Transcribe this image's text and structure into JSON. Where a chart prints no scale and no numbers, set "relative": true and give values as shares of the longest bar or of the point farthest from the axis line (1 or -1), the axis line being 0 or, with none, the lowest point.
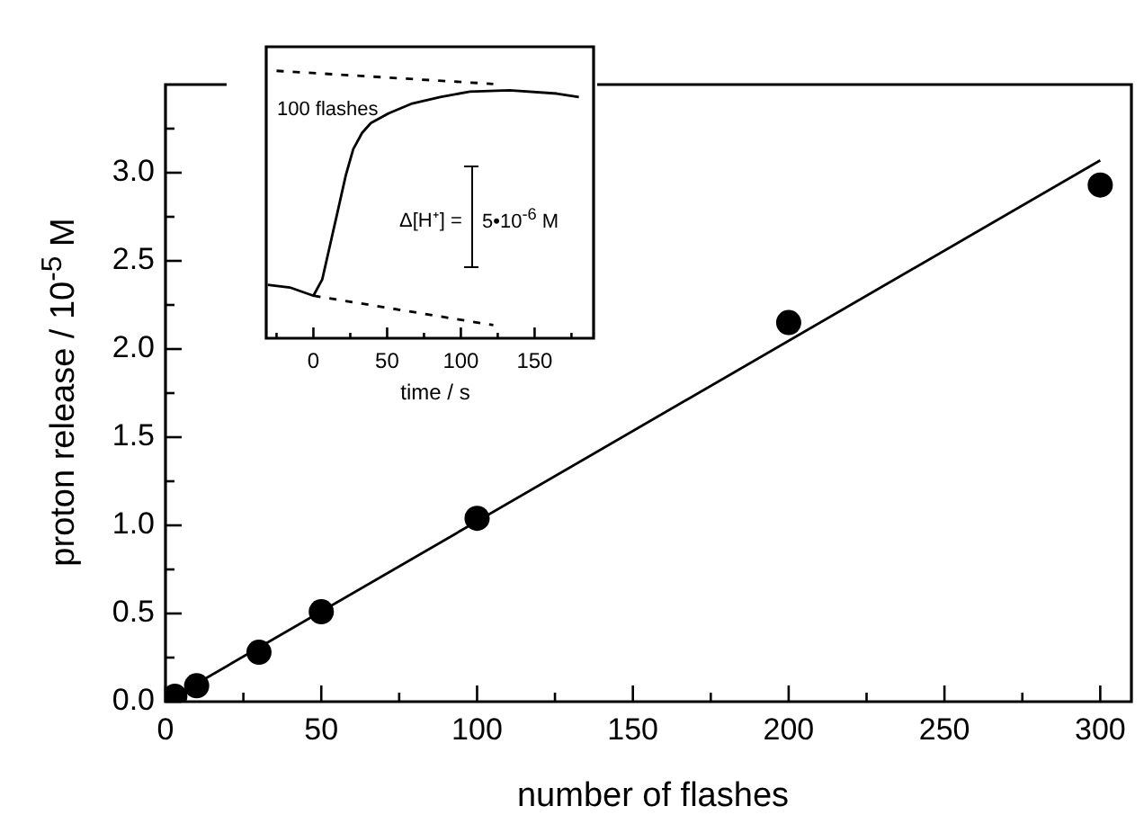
{
  "chart_data": [
    {
      "type": "scatter",
      "xlabel": "number of flashes",
      "ylabel": "proton release / 10$^{-5}$ M",
      "xlim": [
        0,
        310
      ],
      "ylim": [
        0,
        3.5
      ],
      "xticks": [
        0,
        {
          "value": 25,
          "label": null
        },
        50,
        {
          "value": 75,
          "label": null
        },
        100,
        {
          "value": 125,
          "label": null
        },
        150,
        {
          "value": 175,
          "label": null
        },
        200,
        {
          "value": 225,
          "label": null
        },
        250,
        {
          "value": 275,
          "label": null
        },
        300
      ],
      "yticks": [
        {
          "value": 0,
          "label": "0.0"
        },
        {
          "value": 0.25,
          "label": null
        },
        {
          "value": 0.5,
          "label": "0.5"
        },
        {
          "value": 0.75,
          "label": null
        },
        {
          "value": 1,
          "label": "1.0"
        },
        {
          "value": 1.25,
          "label": null
        },
        {
          "value": 1.5,
          "label": "1.5"
        },
        {
          "value": 1.75,
          "label": null
        },
        {
          "value": 2,
          "label": "2.0"
        },
        {
          "value": 2.25,
          "label": null
        },
        {
          "value": 2.5,
          "label": "2.5"
        },
        {
          "value": 2.75,
          "label": null
        },
        {
          "value": 3,
          "label": "3.0"
        },
        {
          "value": 3.25,
          "label": null
        }
      ],
      "series": [
        {
          "type": "scatter",
          "color": "#000000",
          "marker": "circle",
          "x": [
            3,
            10,
            30,
            50,
            100,
            200,
            300
          ],
          "values": [
            0.03,
            0.09,
            0.28,
            0.51,
            1.04,
            2.15,
            2.93
          ]
        },
        {
          "type": "line",
          "color": "#000000",
          "marker": "none",
          "line_style": "solid",
          "x": [
            0,
            300
          ],
          "values": [
            0,
            3.07
          ]
        }
      ]
    },
    {
      "type": "line",
      "xlabel": "time / s",
      "relative": true,
      "tick_labels": "x",
      "xlim": [
        -32,
        190
      ],
      "xticks": [
        {
          "value": -25,
          "label": null
        },
        0,
        {
          "value": 25,
          "label": null
        },
        50,
        {
          "value": 75,
          "label": null
        },
        100,
        {
          "value": 125,
          "label": null
        },
        150,
        {
          "value": 175,
          "label": null
        }
      ],
      "annotations": [
        "100 flashes",
        "Δ[H⁺] =",
        "5•10$^{-6}$ M"
      ],
      "series": [
        {
          "color": "#000000",
          "line_style": "solid",
          "x": [
            -31,
            -16,
            0,
            6,
            12,
            16,
            22,
            27,
            33,
            39,
            51,
            67,
            86,
            106,
            133,
            165,
            180
          ],
          "values": [
            0.2,
            0.19,
            0.159,
            0.22,
            0.366,
            0.463,
            0.61,
            0.707,
            0.768,
            0.805,
            0.841,
            0.878,
            0.902,
            0.922,
            0.927,
            0.915,
            0.902
          ]
        },
        {
          "color": "#000000",
          "line_style": "dashed",
          "x": [
            -25,
            122
          ],
          "values": [
            1,
            0.951
          ]
        },
        {
          "color": "#000000",
          "line_style": "dashed",
          "x": [
            0,
            122
          ],
          "values": [
            0.159,
            0.049
          ]
        }
      ]
    }
  ]
}
